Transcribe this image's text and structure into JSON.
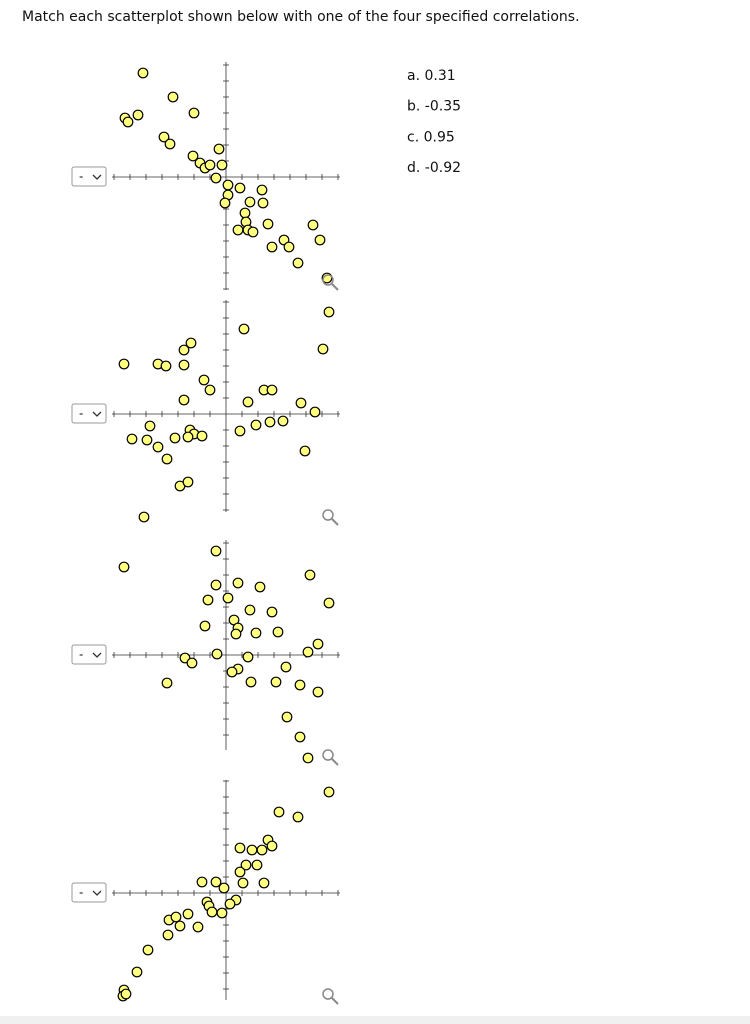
{
  "instruction": "Match each scatterplot shown below with one of the four specified correlations.",
  "options": [
    "a. 0.31",
    "b. -0.35",
    "c. 0.95",
    "d. -0.92"
  ],
  "dropdowns": [
    "-",
    "-",
    "-",
    "-"
  ]
}
